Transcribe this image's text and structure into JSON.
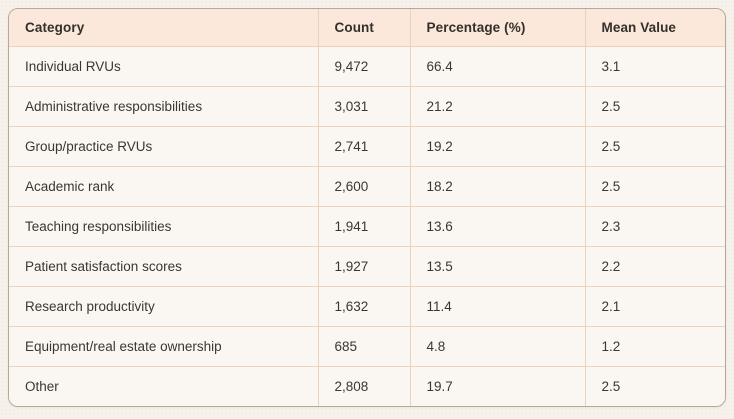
{
  "colors": {
    "page_bg": "#f6f2eb",
    "header_bg": "#fbe8da",
    "row_bg": "#faf6f1",
    "grid_border": "#ecd2bd",
    "outer_border": "#b5a897",
    "text": "#35322e"
  },
  "chart_data": {
    "type": "table",
    "columns": [
      "Category",
      "Count",
      "Percentage (%)",
      "Mean Value"
    ],
    "rows": [
      [
        "Individual RVUs",
        "9,472",
        "66.4",
        "3.1"
      ],
      [
        "Administrative responsibilities",
        "3,031",
        "21.2",
        "2.5"
      ],
      [
        "Group/practice RVUs",
        "2,741",
        "19.2",
        "2.5"
      ],
      [
        "Academic rank",
        "2,600",
        "18.2",
        "2.5"
      ],
      [
        "Teaching responsibilities",
        "1,941",
        "13.6",
        "2.3"
      ],
      [
        "Patient satisfaction scores",
        "1,927",
        "13.5",
        "2.2"
      ],
      [
        "Research productivity",
        "1,632",
        "11.4",
        "2.1"
      ],
      [
        "Equipment/real estate ownership",
        "685",
        "4.8",
        "1.2"
      ],
      [
        "Other",
        "2,808",
        "19.7",
        "2.5"
      ]
    ]
  }
}
